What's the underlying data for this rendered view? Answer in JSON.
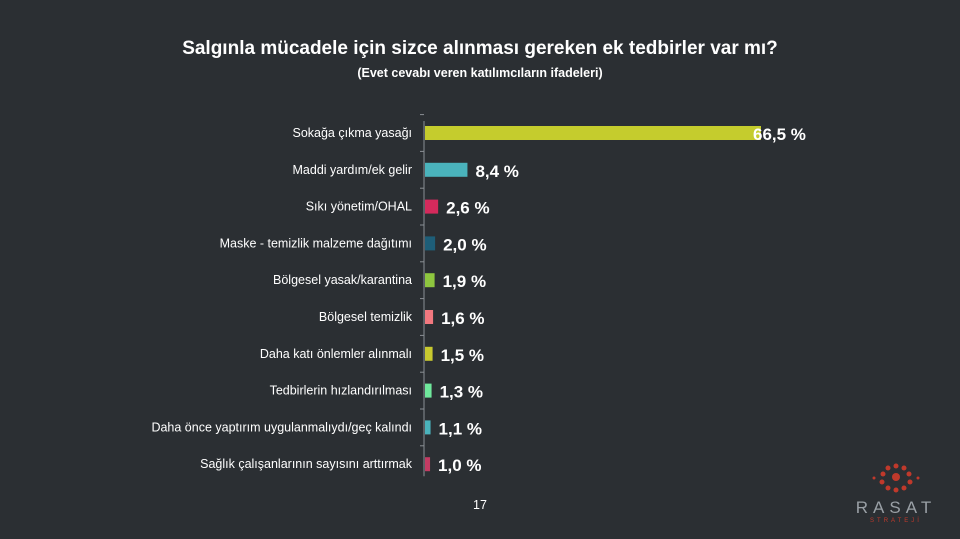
{
  "title": "Salgınla mücadele için sizce alınması gereken ek tedbirler var mı?",
  "subtitle": "(Evet cevabı veren katılımcıların ifadeleri)",
  "page_number": "17",
  "logo": {
    "text": "RASAT",
    "subtext": "STRATEJİ"
  },
  "chart_data": {
    "type": "bar",
    "orientation": "horizontal",
    "title": "Salgınla mücadele için sizce alınması gereken ek tedbirler var mı?",
    "subtitle": "(Evet cevabı veren katılımcıların ifadeleri)",
    "categories": [
      "Sokağa çıkma yasağı",
      "Maddi yardım/ek gelir",
      "Sıkı yönetim/OHAL",
      "Maske - temizlik malzeme dağıtımı",
      "Bölgesel yasak/karantina",
      "Bölgesel temizlik",
      "Daha katı önlemler alınmalı",
      "Tedbirlerin hızlandırılması",
      "Daha önce yaptırım uygulanmalıydı/geç kalındı",
      "Sağlık çalışanlarının sayısını arttırmak"
    ],
    "values": [
      66.5,
      8.4,
      2.6,
      2.0,
      1.9,
      1.6,
      1.5,
      1.3,
      1.1,
      1.0
    ],
    "labels": [
      "66,5 %",
      "8,4 %",
      "2,6 %",
      "2,0 %",
      "1,9 %",
      "1,6 %",
      "1,5 %",
      "1,3 %",
      "1,1 %",
      "1,0 %"
    ],
    "colors": [
      "#c5cc2d",
      "#4ab3bc",
      "#d42a5c",
      "#1e5e78",
      "#8ec63f",
      "#f2787f",
      "#c8c92f",
      "#6fe89c",
      "#4ab3bc",
      "#c23b63"
    ],
    "xlim": [
      0,
      66.5
    ],
    "grid": false,
    "legend": "none"
  }
}
